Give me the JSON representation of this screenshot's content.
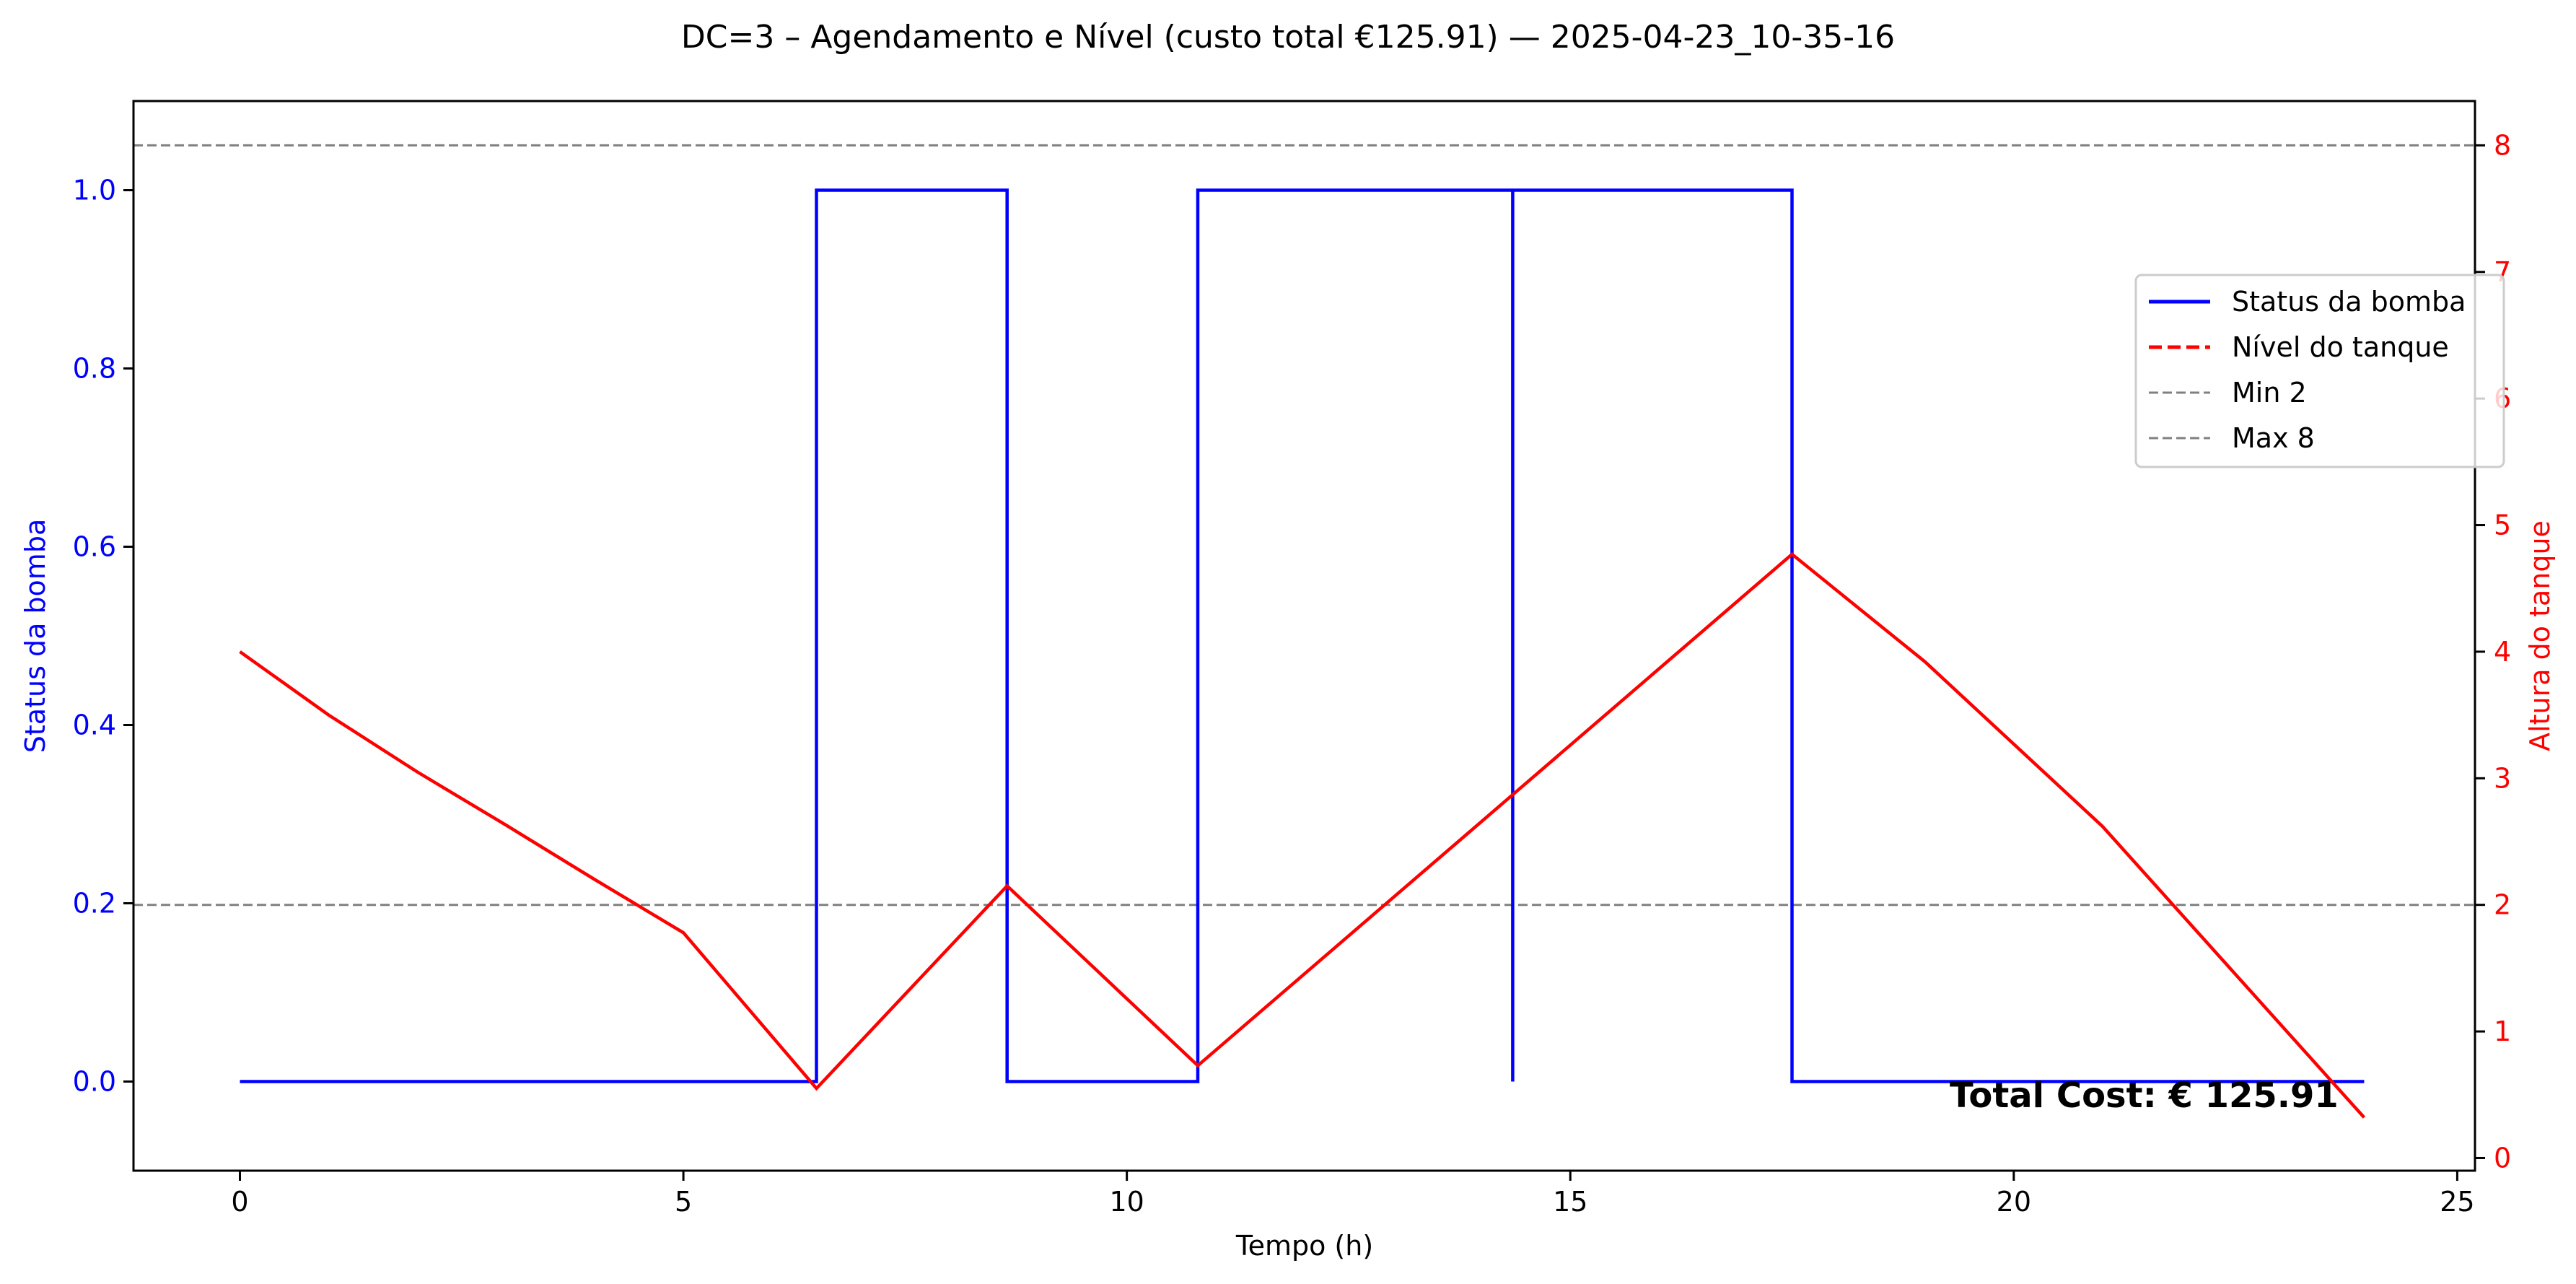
{
  "chart_data": {
    "type": "line",
    "title": "DC=3 – Agendamento e Nível (custo total €125.91) — 2025-04-23_10-35-16",
    "xlabel": "Tempo (h)",
    "ylabel_left": "Status da bomba",
    "ylabel_right": "Altura do tanque",
    "xlim": [
      -1.2,
      25.2
    ],
    "ylim_left": [
      -0.1,
      1.1
    ],
    "ylim_right": [
      -0.1,
      8.35
    ],
    "x_ticks": [
      0,
      5,
      10,
      15,
      20,
      25
    ],
    "y_left_ticks": [
      0.0,
      0.2,
      0.4,
      0.6,
      0.8,
      1.0
    ],
    "y_right_ticks": [
      0,
      1,
      2,
      3,
      4,
      5,
      6,
      7,
      8
    ],
    "y_left_tick_labels": [
      "0.0",
      "0.2",
      "0.4",
      "0.6",
      "0.8",
      "1.0"
    ],
    "y_right_tick_labels": [
      "0",
      "1",
      "2",
      "3",
      "4",
      "5",
      "6",
      "7",
      "8"
    ],
    "x_tick_labels": [
      "0",
      "5",
      "10",
      "15",
      "20",
      "25"
    ],
    "grid": false,
    "legend_position": "upper-right",
    "colors": {
      "pump": "#0000ff",
      "level": "#ff0000",
      "reference": "#808080",
      "left_axis_text": "#0000ff",
      "right_axis_text": "#ff0000"
    },
    "series": [
      {
        "name": "Status da bomba",
        "axis": "left",
        "style": "solid",
        "x": [
          0,
          6.5,
          6.5,
          8.65,
          8.65,
          10.8,
          10.8,
          14.35,
          14.35,
          14.35,
          17.5,
          17.5,
          23.95
        ],
        "y": [
          0,
          0,
          1,
          1,
          0,
          0,
          1,
          1,
          0,
          1,
          1,
          0,
          0
        ]
      },
      {
        "name": "Nível do tanque",
        "axis": "right",
        "style": "solid",
        "x": [
          0,
          1,
          2,
          3,
          4,
          5,
          6.5,
          8.65,
          10.8,
          14.35,
          17.5,
          19,
          21,
          23.95
        ],
        "y": [
          4.0,
          3.5,
          3.05,
          2.63,
          2.2,
          1.78,
          0.55,
          2.15,
          0.73,
          2.87,
          4.77,
          3.92,
          2.62,
          0.32
        ]
      }
    ],
    "reference_lines": [
      {
        "name": "Min 2",
        "axis": "right",
        "y": 2,
        "style": "dashed"
      },
      {
        "name": "Max 8",
        "axis": "right",
        "y": 8,
        "style": "dashed"
      }
    ],
    "legend": [
      {
        "label": "Status da bomba",
        "style": "solid",
        "color": "#0000ff"
      },
      {
        "label": "Nível do tanque",
        "style": "dashed",
        "color": "#ff0000"
      },
      {
        "label": "Min 2",
        "style": "dashed",
        "color": "#808080"
      },
      {
        "label": "Max 8",
        "style": "dashed",
        "color": "#808080"
      }
    ],
    "annotation": "Total Cost: € 125.91"
  }
}
